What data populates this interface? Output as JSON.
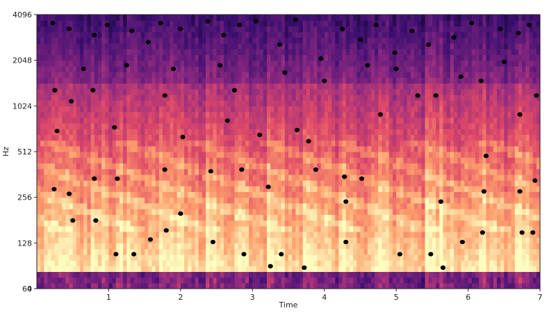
{
  "chart_data": {
    "type": "heatmap",
    "subtype": "spectrogram with detected peak markers",
    "title": "",
    "xlabel": "Time",
    "ylabel": "Hz",
    "xlim": [
      0,
      7
    ],
    "y_scale": "log2 (with 0 at bottom)",
    "ylim": [
      0,
      4096
    ],
    "x_ticks": [
      {
        "value": 1,
        "label": "1"
      },
      {
        "value": 2,
        "label": "2"
      },
      {
        "value": 3,
        "label": "3"
      },
      {
        "value": 4,
        "label": "4"
      },
      {
        "value": 5,
        "label": "5"
      },
      {
        "value": 6,
        "label": "6"
      },
      {
        "value": 7,
        "label": "7"
      }
    ],
    "y_ticks": [
      {
        "value": 0,
        "label": "0"
      },
      {
        "value": 64,
        "label": "64"
      },
      {
        "value": 128,
        "label": "128"
      },
      {
        "value": 256,
        "label": "256"
      },
      {
        "value": 512,
        "label": "512"
      },
      {
        "value": 1024,
        "label": "1024"
      },
      {
        "value": 2048,
        "label": "2048"
      },
      {
        "value": 4096,
        "label": "4096"
      }
    ],
    "colormap": [
      "#000004",
      "#3b0f70",
      "#8c2981",
      "#de4968",
      "#fe9f6d",
      "#fcfdbf"
    ],
    "marker_color": "#000000",
    "grid": false,
    "legend": "none",
    "onsets": [
      0.12,
      0.38,
      0.78,
      1.12,
      1.75,
      1.98,
      2.38,
      2.78,
      3.25,
      3.72,
      4.25,
      4.75,
      5.42,
      5.62,
      6.2,
      6.7
    ],
    "peaks": [
      {
        "t": 0.22,
        "f": 3600
      },
      {
        "t": 0.25,
        "f": 1300
      },
      {
        "t": 0.28,
        "f": 700
      },
      {
        "t": 0.24,
        "f": 290
      },
      {
        "t": 0.45,
        "f": 3300
      },
      {
        "t": 0.48,
        "f": 1100
      },
      {
        "t": 0.45,
        "f": 270
      },
      {
        "t": 0.5,
        "f": 180
      },
      {
        "t": 0.8,
        "f": 3000
      },
      {
        "t": 0.78,
        "f": 1300
      },
      {
        "t": 0.8,
        "f": 340
      },
      {
        "t": 0.82,
        "f": 180
      },
      {
        "t": 0.98,
        "f": 3500
      },
      {
        "t": 1.08,
        "f": 740
      },
      {
        "t": 1.1,
        "f": 108
      },
      {
        "t": 1.12,
        "f": 340
      },
      {
        "t": 1.32,
        "f": 3200
      },
      {
        "t": 1.35,
        "f": 108
      },
      {
        "t": 1.55,
        "f": 2700
      },
      {
        "t": 1.58,
        "f": 135
      },
      {
        "t": 1.72,
        "f": 3600
      },
      {
        "t": 1.78,
        "f": 1200
      },
      {
        "t": 1.78,
        "f": 390
      },
      {
        "t": 1.8,
        "f": 155
      },
      {
        "t": 2.0,
        "f": 3300
      },
      {
        "t": 2.0,
        "f": 200
      },
      {
        "t": 2.03,
        "f": 640
      },
      {
        "t": 2.38,
        "f": 3700
      },
      {
        "t": 2.42,
        "f": 380
      },
      {
        "t": 2.45,
        "f": 130
      },
      {
        "t": 2.6,
        "f": 3000
      },
      {
        "t": 2.65,
        "f": 820
      },
      {
        "t": 2.75,
        "f": 1300
      },
      {
        "t": 2.82,
        "f": 3500
      },
      {
        "t": 2.85,
        "f": 390
      },
      {
        "t": 2.88,
        "f": 108
      },
      {
        "t": 3.05,
        "f": 3700
      },
      {
        "t": 3.1,
        "f": 660
      },
      {
        "t": 3.22,
        "f": 300
      },
      {
        "t": 3.25,
        "f": 90
      },
      {
        "t": 3.38,
        "f": 2600
      },
      {
        "t": 3.4,
        "f": 108
      },
      {
        "t": 3.6,
        "f": 3800
      },
      {
        "t": 3.62,
        "f": 710
      },
      {
        "t": 3.72,
        "f": 88
      },
      {
        "t": 3.78,
        "f": 600
      },
      {
        "t": 3.88,
        "f": 390
      },
      {
        "t": 4.0,
        "f": 1500
      },
      {
        "t": 4.25,
        "f": 3300
      },
      {
        "t": 4.28,
        "f": 350
      },
      {
        "t": 4.3,
        "f": 130
      },
      {
        "t": 4.3,
        "f": 240
      },
      {
        "t": 4.5,
        "f": 2800
      },
      {
        "t": 4.52,
        "f": 340
      },
      {
        "t": 4.72,
        "f": 3500
      },
      {
        "t": 4.78,
        "f": 900
      },
      {
        "t": 4.98,
        "f": 2300
      },
      {
        "t": 5.05,
        "f": 108
      },
      {
        "t": 5.22,
        "f": 3200
      },
      {
        "t": 5.3,
        "f": 1200
      },
      {
        "t": 5.45,
        "f": 2600
      },
      {
        "t": 5.48,
        "f": 108
      },
      {
        "t": 5.55,
        "f": 1200
      },
      {
        "t": 5.62,
        "f": 240
      },
      {
        "t": 5.65,
        "f": 88
      },
      {
        "t": 5.8,
        "f": 2900
      },
      {
        "t": 5.92,
        "f": 130
      },
      {
        "t": 6.05,
        "f": 3600
      },
      {
        "t": 6.18,
        "f": 1500
      },
      {
        "t": 6.2,
        "f": 150
      },
      {
        "t": 6.22,
        "f": 280
      },
      {
        "t": 6.25,
        "f": 480
      },
      {
        "t": 6.45,
        "f": 3300
      },
      {
        "t": 6.7,
        "f": 3100
      },
      {
        "t": 6.72,
        "f": 900
      },
      {
        "t": 6.72,
        "f": 280
      },
      {
        "t": 6.75,
        "f": 150
      },
      {
        "t": 6.9,
        "f": 150
      },
      {
        "t": 6.93,
        "f": 330
      },
      {
        "t": 6.95,
        "f": 1200
      },
      {
        "t": 6.85,
        "f": 3500
      },
      {
        "t": 6.5,
        "f": 2000
      },
      {
        "t": 5.9,
        "f": 1600
      },
      {
        "t": 5.0,
        "f": 1800
      },
      {
        "t": 4.6,
        "f": 1900
      },
      {
        "t": 3.95,
        "f": 2100
      },
      {
        "t": 3.45,
        "f": 1700
      },
      {
        "t": 2.55,
        "f": 1900
      },
      {
        "t": 1.9,
        "f": 1800
      },
      {
        "t": 1.25,
        "f": 1900
      },
      {
        "t": 0.65,
        "f": 1800
      }
    ]
  }
}
